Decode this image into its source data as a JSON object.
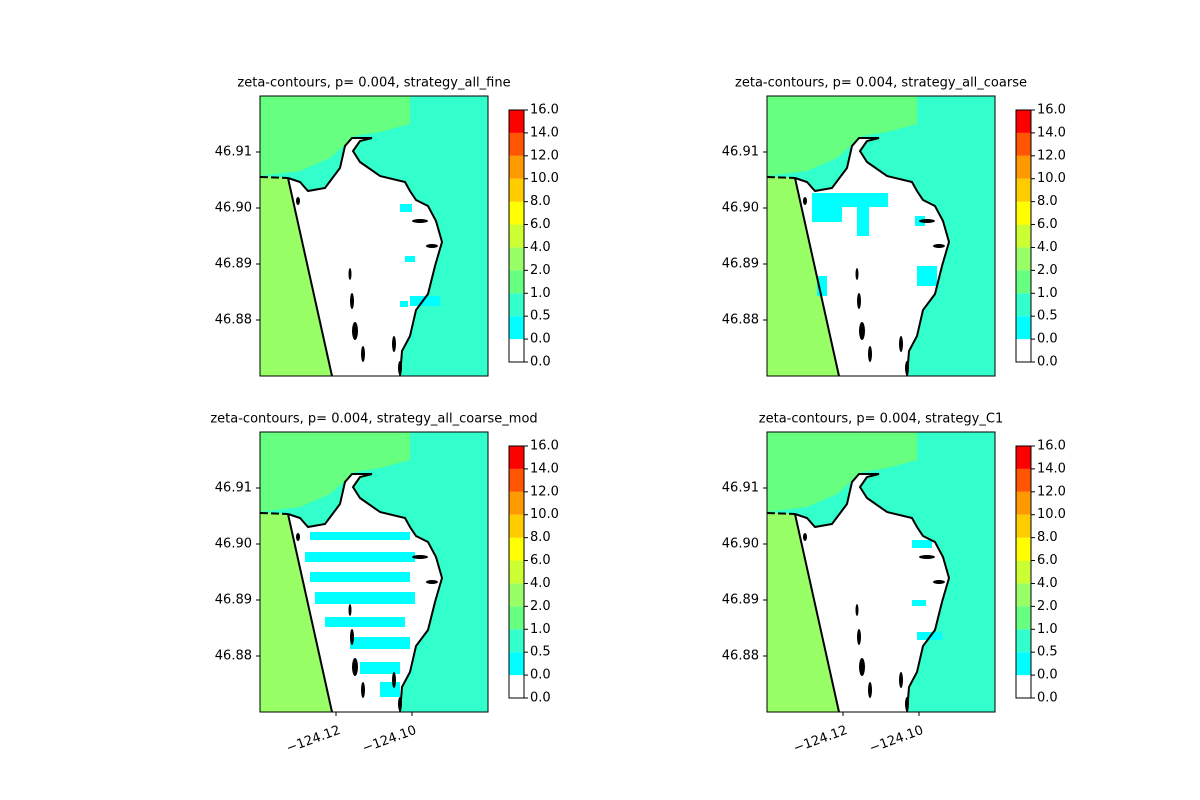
{
  "chart_data": [
    {
      "type": "contour",
      "title": "zeta-contours, p= 0.004, strategy_all_fine",
      "xlim": [
        -124.14,
        -124.08
      ],
      "ylim": [
        46.87,
        46.92
      ],
      "yticks": [
        46.88,
        46.89,
        {
          "value": 46.9,
          "label": "46.90"
        },
        46.91
      ],
      "levels": [
        {
          "value": 0,
          "label": "0.0"
        },
        {
          "value": 0,
          "label": "0.0"
        },
        0.5,
        {
          "value": 1,
          "label": "1.0"
        },
        {
          "value": 2,
          "label": "2.0"
        },
        {
          "value": 4,
          "label": "4.0"
        },
        {
          "value": 6,
          "label": "6.0"
        },
        {
          "value": 8,
          "label": "8.0"
        },
        {
          "value": 10,
          "label": "10.0"
        },
        {
          "value": 12,
          "label": "12.0"
        },
        {
          "value": 14,
          "label": "14.0"
        },
        {
          "value": 16,
          "label": "16.0"
        }
      ],
      "colors": [
        "#ffffff",
        "#00ffff",
        "#33ffcc",
        "#66ff80",
        "#99ff66",
        "#ccff33",
        "#ffff00",
        "#ffcc00",
        "#ff9900",
        "#ff5500",
        "#ff0000"
      ]
    },
    {
      "type": "contour",
      "title": "zeta-contours, p= 0.004, strategy_all_coarse",
      "xlim": [
        -124.14,
        -124.08
      ],
      "ylim": [
        46.87,
        46.92
      ],
      "yticks": [
        46.88,
        46.89,
        {
          "value": 46.9,
          "label": "46.90"
        },
        46.91
      ],
      "levels": [
        {
          "value": 0,
          "label": "0.0"
        },
        {
          "value": 0,
          "label": "0.0"
        },
        0.5,
        {
          "value": 1,
          "label": "1.0"
        },
        {
          "value": 2,
          "label": "2.0"
        },
        {
          "value": 4,
          "label": "4.0"
        },
        {
          "value": 6,
          "label": "6.0"
        },
        {
          "value": 8,
          "label": "8.0"
        },
        {
          "value": 10,
          "label": "10.0"
        },
        {
          "value": 12,
          "label": "12.0"
        },
        {
          "value": 14,
          "label": "14.0"
        },
        {
          "value": 16,
          "label": "16.0"
        }
      ],
      "colors": [
        "#ffffff",
        "#00ffff",
        "#33ffcc",
        "#66ff80",
        "#99ff66",
        "#ccff33",
        "#ffff00",
        "#ffcc00",
        "#ff9900",
        "#ff5500",
        "#ff0000"
      ]
    },
    {
      "type": "contour",
      "title": "zeta-contours, p= 0.004, strategy_all_coarse_mod",
      "xlim": [
        -124.14,
        -124.08
      ],
      "ylim": [
        46.87,
        46.92
      ],
      "xticks": [
        {
          "value": -124.12,
          "label": "−124.12"
        },
        {
          "value": -124.1,
          "label": "−124.10"
        }
      ],
      "yticks": [
        46.88,
        46.89,
        {
          "value": 46.9,
          "label": "46.90"
        },
        46.91
      ],
      "levels": [
        {
          "value": 0,
          "label": "0.0"
        },
        {
          "value": 0,
          "label": "0.0"
        },
        0.5,
        {
          "value": 1,
          "label": "1.0"
        },
        {
          "value": 2,
          "label": "2.0"
        },
        {
          "value": 4,
          "label": "4.0"
        },
        {
          "value": 6,
          "label": "6.0"
        },
        {
          "value": 8,
          "label": "8.0"
        },
        {
          "value": 10,
          "label": "10.0"
        },
        {
          "value": 12,
          "label": "12.0"
        },
        {
          "value": 14,
          "label": "14.0"
        },
        {
          "value": 16,
          "label": "16.0"
        }
      ],
      "colors": [
        "#ffffff",
        "#00ffff",
        "#33ffcc",
        "#66ff80",
        "#99ff66",
        "#ccff33",
        "#ffff00",
        "#ffcc00",
        "#ff9900",
        "#ff5500",
        "#ff0000"
      ]
    },
    {
      "type": "contour",
      "title": "zeta-contours, p= 0.004, strategy_C1",
      "xlim": [
        -124.14,
        -124.08
      ],
      "ylim": [
        46.87,
        46.92
      ],
      "xticks": [
        {
          "value": -124.12,
          "label": "−124.12"
        },
        {
          "value": -124.1,
          "label": "−124.10"
        }
      ],
      "yticks": [
        46.88,
        46.89,
        {
          "value": 46.9,
          "label": "46.90"
        },
        46.91
      ],
      "levels": [
        {
          "value": 0,
          "label": "0.0"
        },
        {
          "value": 0,
          "label": "0.0"
        },
        0.5,
        {
          "value": 1,
          "label": "1.0"
        },
        {
          "value": 2,
          "label": "2.0"
        },
        {
          "value": 4,
          "label": "4.0"
        },
        {
          "value": 6,
          "label": "6.0"
        },
        {
          "value": 8,
          "label": "8.0"
        },
        {
          "value": 10,
          "label": "10.0"
        },
        {
          "value": 12,
          "label": "12.0"
        },
        {
          "value": 14,
          "label": "14.0"
        },
        {
          "value": 16,
          "label": "16.0"
        }
      ],
      "colors": [
        "#ffffff",
        "#00ffff",
        "#33ffcc",
        "#66ff80",
        "#99ff66",
        "#ccff33",
        "#ffff00",
        "#ffcc00",
        "#ff9900",
        "#ff5500",
        "#ff0000"
      ]
    }
  ]
}
